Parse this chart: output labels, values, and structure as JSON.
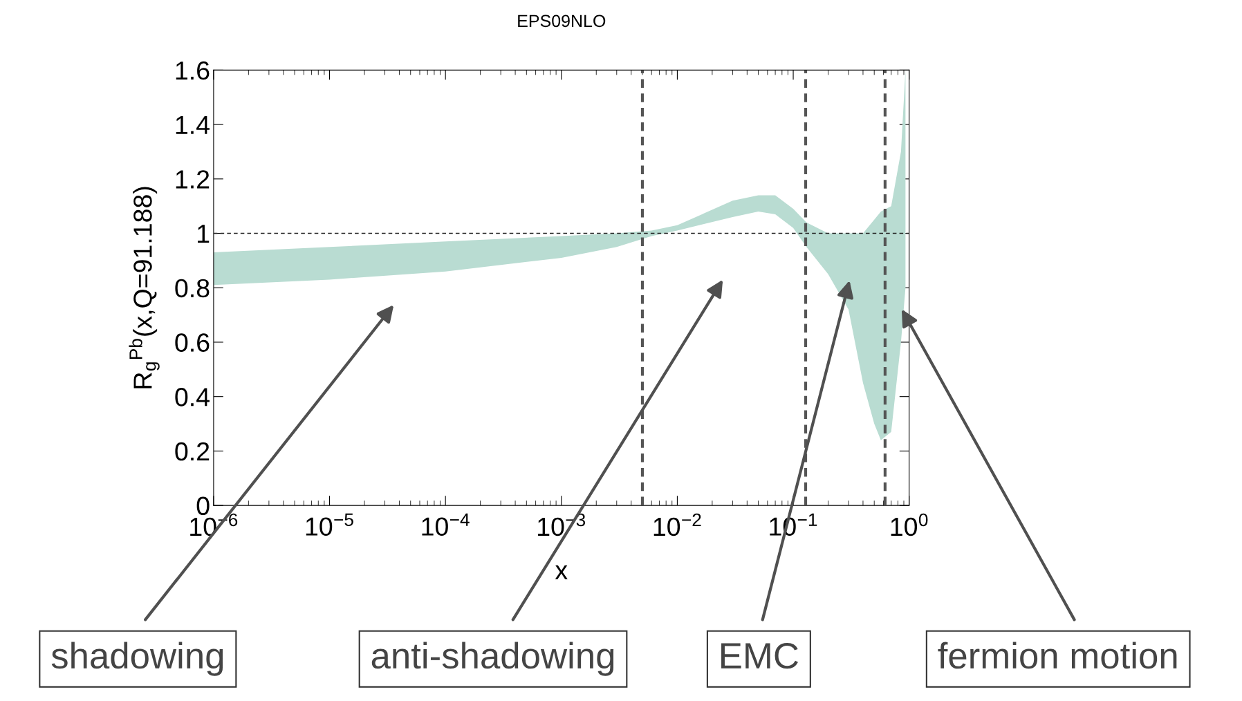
{
  "chart_data": {
    "type": "area",
    "title": "EPS09NLO",
    "xlabel": "x",
    "ylabel": "R$_{g}$$^{Pb}$(x,Q=91.188)",
    "x": [
      1e-06,
      1e-05,
      0.0001,
      0.001,
      0.003,
      0.006,
      0.01,
      0.03,
      0.05,
      0.07,
      0.1,
      0.13,
      0.2,
      0.3,
      0.4,
      0.5,
      0.57,
      0.7,
      0.85,
      0.93
    ],
    "series": [
      {
        "color": "#b9dcd2",
        "values": [
          null,
          null,
          null,
          null,
          null,
          null,
          null,
          null,
          null,
          null,
          null,
          null,
          null,
          null,
          null,
          null,
          null,
          null,
          null,
          null
        ],
        "upper": [
          0.93,
          0.95,
          0.97,
          0.99,
          1.0,
          1.01,
          1.03,
          1.12,
          1.14,
          1.14,
          1.09,
          1.04,
          1.0,
          1.0,
          1.0,
          1.05,
          1.08,
          1.1,
          1.3,
          1.6
        ],
        "lower": [
          0.81,
          0.83,
          0.86,
          0.91,
          0.95,
          0.99,
          1.01,
          1.06,
          1.08,
          1.07,
          1.02,
          0.95,
          0.85,
          0.72,
          0.45,
          0.3,
          0.24,
          0.27,
          0.6,
          0.8
        ]
      }
    ],
    "log": "x",
    "xlim": [
      1e-06,
      1
    ],
    "xticks": [
      {
        "value": 1e-06,
        "label": "10$^{−6}$"
      },
      {
        "value": 1e-05,
        "label": "10$^{−5}$"
      },
      {
        "value": 0.0001,
        "label": "10$^{−4}$"
      },
      {
        "value": 0.001,
        "label": "10$^{−3}$"
      },
      {
        "value": 0.01,
        "label": "10$^{−2}$"
      },
      {
        "value": 0.1,
        "label": "10$^{−1}$"
      },
      {
        "value": 1,
        "label": "10$^{0}$"
      }
    ],
    "ylim": [
      0,
      1.6
    ],
    "yticks": [
      0,
      0.2,
      0.4,
      0.6,
      0.8,
      1,
      1.2,
      1.4,
      1.6
    ],
    "grid": false,
    "legend": false,
    "ref_lines": [
      {
        "axis": "y",
        "value": 1,
        "color": "#222222",
        "line_style": "dashed"
      },
      {
        "axis": "x",
        "value": 0.005,
        "color": "#555555",
        "line_style": "dashed"
      },
      {
        "axis": "x",
        "value": 0.128,
        "color": "#555555",
        "line_style": "dashed"
      },
      {
        "axis": "x",
        "value": 0.62,
        "color": "#555555",
        "line_style": "dashed"
      }
    ],
    "annotations": [
      "shadowing",
      "anti-shadowing",
      "EMC",
      "fermion motion"
    ]
  }
}
